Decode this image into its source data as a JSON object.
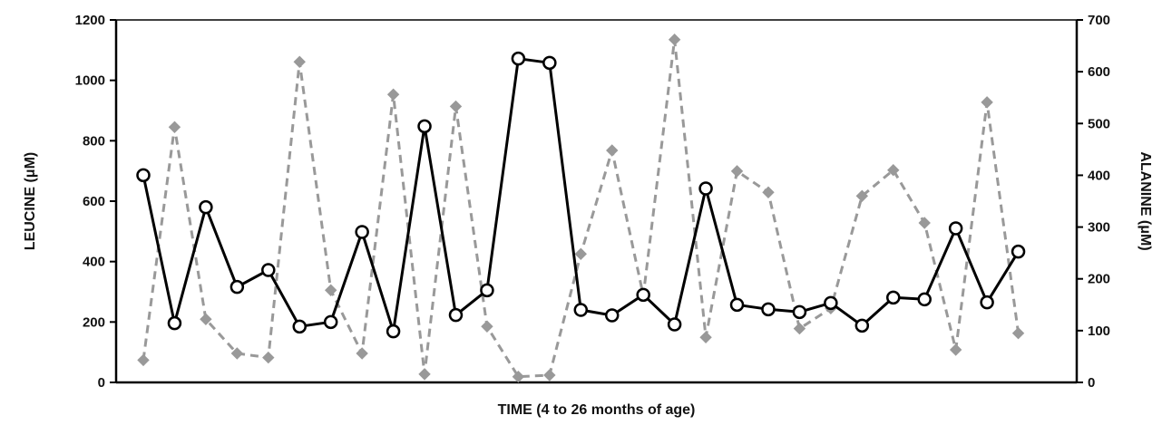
{
  "chart_data": {
    "type": "line",
    "title": "",
    "xlabel": "TIME (4 to 26 months of age)",
    "ylabel_left": "LEUCINE (μM)",
    "ylabel_right": "ALANINE (μM)",
    "ylim_left": [
      0,
      1200
    ],
    "ylim_right": [
      0,
      700
    ],
    "yticks_left": [
      "0",
      "200",
      "400",
      "600",
      "800",
      "1000",
      "1200"
    ],
    "yticks_right": [
      "0",
      "100",
      "200",
      "300",
      "400",
      "500",
      "600",
      "700"
    ],
    "grid": false,
    "legend": "none",
    "x": [
      1,
      2,
      3,
      4,
      5,
      6,
      7,
      8,
      9,
      10,
      11,
      12,
      13,
      14,
      15,
      16,
      17,
      18,
      19,
      20,
      21,
      22,
      23,
      24,
      25,
      26,
      27,
      28,
      29,
      30
    ],
    "series": [
      {
        "axis": "left",
        "color": "#000000",
        "style": "solid",
        "marker": "open-circle",
        "values": [
          686,
          196,
          580,
          316,
          372,
          185,
          200,
          498,
          169,
          848,
          223,
          305,
          1072,
          1058,
          240,
          222,
          290,
          192,
          642,
          257,
          242,
          233,
          263,
          188,
          281,
          275,
          510,
          265,
          433,
          null
        ]
      },
      {
        "axis": "right",
        "color": "#999999",
        "style": "dashed",
        "marker": "diamond",
        "values": [
          43,
          493,
          122,
          56,
          48,
          619,
          178,
          56,
          556,
          16,
          533,
          108,
          11,
          14,
          248,
          448,
          168,
          662,
          87,
          408,
          367,
          104,
          143,
          360,
          410,
          308,
          63,
          541,
          95,
          null
        ]
      }
    ]
  }
}
